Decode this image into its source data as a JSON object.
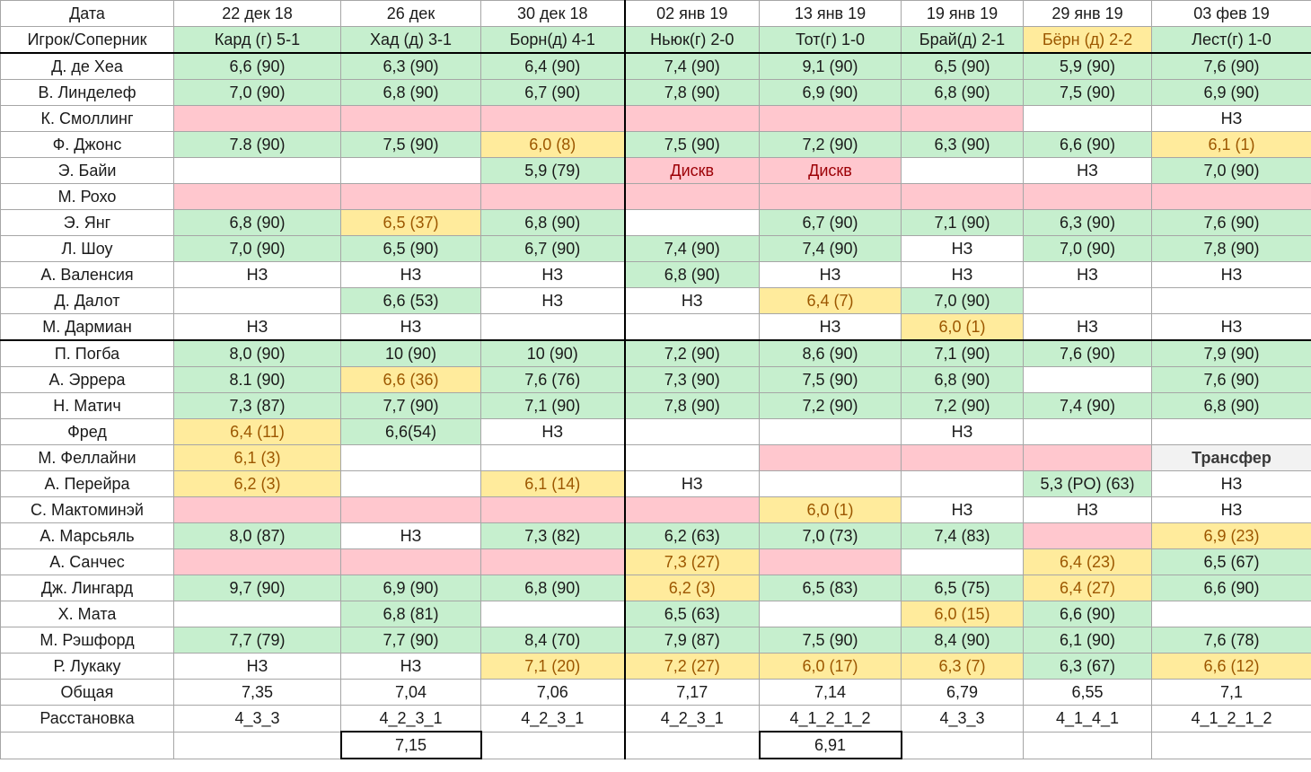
{
  "header_row": {
    "label": "Дата",
    "dates": [
      "22 дек 18",
      "26 дек",
      "30 дек 18",
      "02 янв 19",
      "13 янв 19",
      "19 янв 19",
      "29 янв 19",
      "03 фев 19"
    ]
  },
  "opponent_row": {
    "label": "Игрок/Соперник",
    "opponents": [
      {
        "text": "Кард (г) 5-1",
        "color": "g"
      },
      {
        "text": "Хад (д) 3-1",
        "color": "g"
      },
      {
        "text": "Борн(д) 4-1",
        "color": "g"
      },
      {
        "text": "Ньюк(г) 2-0",
        "color": "g"
      },
      {
        "text": "Тот(г) 1-0",
        "color": "g"
      },
      {
        "text": "Брай(д) 2-1",
        "color": "g"
      },
      {
        "text": "Бёрн (д) 2-2",
        "color": "y"
      },
      {
        "text": "Лест(г) 1-0",
        "color": "g"
      }
    ]
  },
  "players": [
    {
      "name": "Д. де Хеа",
      "cells": [
        {
          "t": "6,6 (90)",
          "c": "g"
        },
        {
          "t": "6,3 (90)",
          "c": "g"
        },
        {
          "t": "6,4 (90)",
          "c": "g"
        },
        {
          "t": "7,4 (90)",
          "c": "g"
        },
        {
          "t": "9,1 (90)",
          "c": "g"
        },
        {
          "t": "6,5 (90)",
          "c": "g"
        },
        {
          "t": "5,9 (90)",
          "c": "g"
        },
        {
          "t": "7,6 (90)",
          "c": "g"
        }
      ]
    },
    {
      "name": "В. Линделеф",
      "cells": [
        {
          "t": "7,0 (90)",
          "c": "g"
        },
        {
          "t": "6,8 (90)",
          "c": "g"
        },
        {
          "t": "6,7 (90)",
          "c": "g"
        },
        {
          "t": "7,8 (90)",
          "c": "g"
        },
        {
          "t": "6,9 (90)",
          "c": "g"
        },
        {
          "t": "6,8 (90)",
          "c": "g"
        },
        {
          "t": "7,5 (90)",
          "c": "g"
        },
        {
          "t": "6,9 (90)",
          "c": "g"
        }
      ]
    },
    {
      "name": "К. Смоллинг",
      "cells": [
        {
          "t": "",
          "c": "r"
        },
        {
          "t": "",
          "c": "r"
        },
        {
          "t": "",
          "c": "r"
        },
        {
          "t": "",
          "c": "r"
        },
        {
          "t": "",
          "c": "r"
        },
        {
          "t": "",
          "c": "r"
        },
        {
          "t": "",
          "c": ""
        },
        {
          "t": "НЗ",
          "c": ""
        }
      ]
    },
    {
      "name": "Ф. Джонс",
      "cells": [
        {
          "t": "7.8 (90)",
          "c": "g"
        },
        {
          "t": "7,5 (90)",
          "c": "g"
        },
        {
          "t": "6,0 (8)",
          "c": "y"
        },
        {
          "t": "7,5 (90)",
          "c": "g"
        },
        {
          "t": "7,2 (90)",
          "c": "g"
        },
        {
          "t": "6,3 (90)",
          "c": "g"
        },
        {
          "t": "6,6 (90)",
          "c": "g"
        },
        {
          "t": "6,1 (1)",
          "c": "y"
        }
      ]
    },
    {
      "name": "Э. Байи",
      "cells": [
        {
          "t": "",
          "c": ""
        },
        {
          "t": "",
          "c": ""
        },
        {
          "t": "5,9 (79)",
          "c": "g"
        },
        {
          "t": "Дискв",
          "c": "r"
        },
        {
          "t": "Дискв",
          "c": "r"
        },
        {
          "t": "",
          "c": ""
        },
        {
          "t": "НЗ",
          "c": ""
        },
        {
          "t": "7,0 (90)",
          "c": "g"
        }
      ]
    },
    {
      "name": "М. Рохо",
      "cells": [
        {
          "t": "",
          "c": "r"
        },
        {
          "t": "",
          "c": "r"
        },
        {
          "t": "",
          "c": "r"
        },
        {
          "t": "",
          "c": "r"
        },
        {
          "t": "",
          "c": "r"
        },
        {
          "t": "",
          "c": "r"
        },
        {
          "t": "",
          "c": "r"
        },
        {
          "t": "",
          "c": "r"
        }
      ]
    },
    {
      "name": "Э. Янг",
      "cells": [
        {
          "t": "6,8 (90)",
          "c": "g"
        },
        {
          "t": "6,5 (37)",
          "c": "y"
        },
        {
          "t": "6,8 (90)",
          "c": "g"
        },
        {
          "t": "",
          "c": ""
        },
        {
          "t": "6,7 (90)",
          "c": "g"
        },
        {
          "t": "7,1 (90)",
          "c": "g"
        },
        {
          "t": "6,3 (90)",
          "c": "g"
        },
        {
          "t": "7,6 (90)",
          "c": "g"
        }
      ]
    },
    {
      "name": "Л. Шоу",
      "cells": [
        {
          "t": "7,0 (90)",
          "c": "g"
        },
        {
          "t": "6,5 (90)",
          "c": "g"
        },
        {
          "t": "6,7 (90)",
          "c": "g"
        },
        {
          "t": "7,4 (90)",
          "c": "g"
        },
        {
          "t": "7,4 (90)",
          "c": "g"
        },
        {
          "t": "НЗ",
          "c": ""
        },
        {
          "t": "7,0 (90)",
          "c": "g"
        },
        {
          "t": "7,8 (90)",
          "c": "g"
        }
      ]
    },
    {
      "name": "А. Валенсия",
      "cells": [
        {
          "t": "НЗ",
          "c": ""
        },
        {
          "t": "НЗ",
          "c": ""
        },
        {
          "t": "НЗ",
          "c": ""
        },
        {
          "t": "6,8 (90)",
          "c": "g"
        },
        {
          "t": "НЗ",
          "c": ""
        },
        {
          "t": "НЗ",
          "c": ""
        },
        {
          "t": "НЗ",
          "c": ""
        },
        {
          "t": "НЗ",
          "c": ""
        }
      ]
    },
    {
      "name": "Д. Далот",
      "cells": [
        {
          "t": "",
          "c": ""
        },
        {
          "t": "6,6 (53)",
          "c": "g"
        },
        {
          "t": "НЗ",
          "c": ""
        },
        {
          "t": "НЗ",
          "c": ""
        },
        {
          "t": "6,4 (7)",
          "c": "y"
        },
        {
          "t": "7,0 (90)",
          "c": "g"
        },
        {
          "t": "",
          "c": ""
        },
        {
          "t": "",
          "c": ""
        }
      ]
    },
    {
      "name": "М. Дармиан",
      "cells": [
        {
          "t": "НЗ",
          "c": ""
        },
        {
          "t": "НЗ",
          "c": ""
        },
        {
          "t": "",
          "c": ""
        },
        {
          "t": "",
          "c": ""
        },
        {
          "t": "НЗ",
          "c": ""
        },
        {
          "t": "6,0 (1)",
          "c": "y"
        },
        {
          "t": "НЗ",
          "c": ""
        },
        {
          "t": "НЗ",
          "c": ""
        }
      ]
    },
    {
      "name": "П. Погба",
      "cells": [
        {
          "t": "8,0 (90)",
          "c": "g"
        },
        {
          "t": "10 (90)",
          "c": "g"
        },
        {
          "t": "10 (90)",
          "c": "g"
        },
        {
          "t": "7,2 (90)",
          "c": "g"
        },
        {
          "t": "8,6 (90)",
          "c": "g"
        },
        {
          "t": "7,1 (90)",
          "c": "g"
        },
        {
          "t": "7,6 (90)",
          "c": "g"
        },
        {
          "t": "7,9 (90)",
          "c": "g"
        }
      ]
    },
    {
      "name": "А. Эррера",
      "cells": [
        {
          "t": "8.1 (90)",
          "c": "g"
        },
        {
          "t": "6,6 (36)",
          "c": "y"
        },
        {
          "t": "7,6 (76)",
          "c": "g"
        },
        {
          "t": "7,3 (90)",
          "c": "g"
        },
        {
          "t": "7,5 (90)",
          "c": "g"
        },
        {
          "t": "6,8 (90)",
          "c": "g"
        },
        {
          "t": "",
          "c": ""
        },
        {
          "t": "7,6 (90)",
          "c": "g"
        }
      ]
    },
    {
      "name": "Н. Матич",
      "cells": [
        {
          "t": "7,3 (87)",
          "c": "g"
        },
        {
          "t": "7,7 (90)",
          "c": "g"
        },
        {
          "t": "7,1 (90)",
          "c": "g"
        },
        {
          "t": "7,8 (90)",
          "c": "g"
        },
        {
          "t": "7,2 (90)",
          "c": "g"
        },
        {
          "t": "7,2 (90)",
          "c": "g"
        },
        {
          "t": "7,4 (90)",
          "c": "g"
        },
        {
          "t": "6,8 (90)",
          "c": "g"
        }
      ]
    },
    {
      "name": "Фред",
      "cells": [
        {
          "t": "6,4 (11)",
          "c": "y"
        },
        {
          "t": "6,6(54)",
          "c": "g"
        },
        {
          "t": "НЗ",
          "c": ""
        },
        {
          "t": "",
          "c": ""
        },
        {
          "t": "",
          "c": ""
        },
        {
          "t": "НЗ",
          "c": ""
        },
        {
          "t": "",
          "c": ""
        },
        {
          "t": "",
          "c": ""
        }
      ]
    },
    {
      "name": "М. Феллайни",
      "cells": [
        {
          "t": "6,1 (3)",
          "c": "y"
        },
        {
          "t": "",
          "c": ""
        },
        {
          "t": "",
          "c": ""
        },
        {
          "t": "",
          "c": ""
        },
        {
          "t": "",
          "c": "r"
        },
        {
          "t": "",
          "c": "r"
        },
        {
          "t": "",
          "c": "r"
        },
        {
          "t": "Трансфер",
          "c": "x"
        }
      ]
    },
    {
      "name": "А. Перейра",
      "cells": [
        {
          "t": "6,2 (3)",
          "c": "y"
        },
        {
          "t": "",
          "c": ""
        },
        {
          "t": "6,1 (14)",
          "c": "y"
        },
        {
          "t": "НЗ",
          "c": ""
        },
        {
          "t": "",
          "c": ""
        },
        {
          "t": "",
          "c": ""
        },
        {
          "t": "5,3 (PO) (63)",
          "c": "g"
        },
        {
          "t": "НЗ",
          "c": ""
        }
      ]
    },
    {
      "name": "С. Мактоминэй",
      "cells": [
        {
          "t": "",
          "c": "r"
        },
        {
          "t": "",
          "c": "r"
        },
        {
          "t": "",
          "c": "r"
        },
        {
          "t": "",
          "c": "r"
        },
        {
          "t": "6,0 (1)",
          "c": "y"
        },
        {
          "t": "НЗ",
          "c": ""
        },
        {
          "t": "НЗ",
          "c": ""
        },
        {
          "t": "НЗ",
          "c": ""
        }
      ]
    },
    {
      "name": "А. Марсьяль",
      "cells": [
        {
          "t": "8,0 (87)",
          "c": "g"
        },
        {
          "t": "НЗ",
          "c": ""
        },
        {
          "t": "7,3 (82)",
          "c": "g"
        },
        {
          "t": "6,2 (63)",
          "c": "g"
        },
        {
          "t": "7,0 (73)",
          "c": "g"
        },
        {
          "t": "7,4 (83)",
          "c": "g"
        },
        {
          "t": "",
          "c": "r"
        },
        {
          "t": "6,9 (23)",
          "c": "y"
        }
      ]
    },
    {
      "name": "А. Санчес",
      "cells": [
        {
          "t": "",
          "c": "r"
        },
        {
          "t": "",
          "c": "r"
        },
        {
          "t": "",
          "c": "r"
        },
        {
          "t": "7,3 (27)",
          "c": "y"
        },
        {
          "t": "",
          "c": "r"
        },
        {
          "t": "",
          "c": ""
        },
        {
          "t": "6,4 (23)",
          "c": "y"
        },
        {
          "t": "6,5 (67)",
          "c": "g"
        }
      ]
    },
    {
      "name": "Дж. Лингард",
      "cells": [
        {
          "t": "9,7 (90)",
          "c": "g"
        },
        {
          "t": "6,9 (90)",
          "c": "g"
        },
        {
          "t": "6,8 (90)",
          "c": "g"
        },
        {
          "t": "6,2 (3)",
          "c": "y"
        },
        {
          "t": "6,5 (83)",
          "c": "g"
        },
        {
          "t": "6,5 (75)",
          "c": "g"
        },
        {
          "t": "6,4 (27)",
          "c": "y"
        },
        {
          "t": "6,6 (90)",
          "c": "g"
        }
      ]
    },
    {
      "name": "Х. Мата",
      "cells": [
        {
          "t": "",
          "c": ""
        },
        {
          "t": "6,8 (81)",
          "c": "g"
        },
        {
          "t": "",
          "c": ""
        },
        {
          "t": "6,5 (63)",
          "c": "g"
        },
        {
          "t": "",
          "c": ""
        },
        {
          "t": "6,0 (15)",
          "c": "y"
        },
        {
          "t": "6,6 (90)",
          "c": "g"
        },
        {
          "t": "",
          "c": ""
        }
      ]
    },
    {
      "name": "М. Рэшфорд",
      "cells": [
        {
          "t": "7,7 (79)",
          "c": "g"
        },
        {
          "t": "7,7 (90)",
          "c": "g"
        },
        {
          "t": "8,4 (70)",
          "c": "g"
        },
        {
          "t": "7,9 (87)",
          "c": "g"
        },
        {
          "t": "7,5 (90)",
          "c": "g"
        },
        {
          "t": "8,4 (90)",
          "c": "g"
        },
        {
          "t": "6,1 (90)",
          "c": "g"
        },
        {
          "t": "7,6 (78)",
          "c": "g"
        }
      ]
    },
    {
      "name": "Р. Лукаку",
      "cells": [
        {
          "t": "НЗ",
          "c": ""
        },
        {
          "t": "НЗ",
          "c": ""
        },
        {
          "t": "7,1 (20)",
          "c": "y"
        },
        {
          "t": "7,2 (27)",
          "c": "y"
        },
        {
          "t": "6,0 (17)",
          "c": "y"
        },
        {
          "t": "6,3 (7)",
          "c": "y"
        },
        {
          "t": "6,3 (67)",
          "c": "g"
        },
        {
          "t": "6,6 (12)",
          "c": "y"
        }
      ]
    }
  ],
  "total_row": {
    "label": "Общая",
    "values": [
      "7,35",
      "7,04",
      "7,06",
      "7,17",
      "7,14",
      "6,79",
      "6,55",
      "7,1"
    ]
  },
  "formation_row": {
    "label": "Расстановка",
    "values": [
      "4_3_3",
      "4_2_3_1",
      "4_2_3_1",
      "4_2_3_1",
      "4_1_2_1_2",
      "4_3_3",
      "4_1_4_1",
      "4_1_2_1_2"
    ]
  },
  "summary_row": {
    "values": [
      "",
      "7,15",
      "",
      "",
      "6,91",
      "",
      "",
      ""
    ]
  },
  "colors": {
    "green_fill": "#c6efce",
    "yellow_fill": "#ffeb9c",
    "yellow_text": "#9c5700",
    "red_fill": "#ffc7ce",
    "red_text": "#9c0006",
    "grey_fill": "#f2f2f2"
  }
}
